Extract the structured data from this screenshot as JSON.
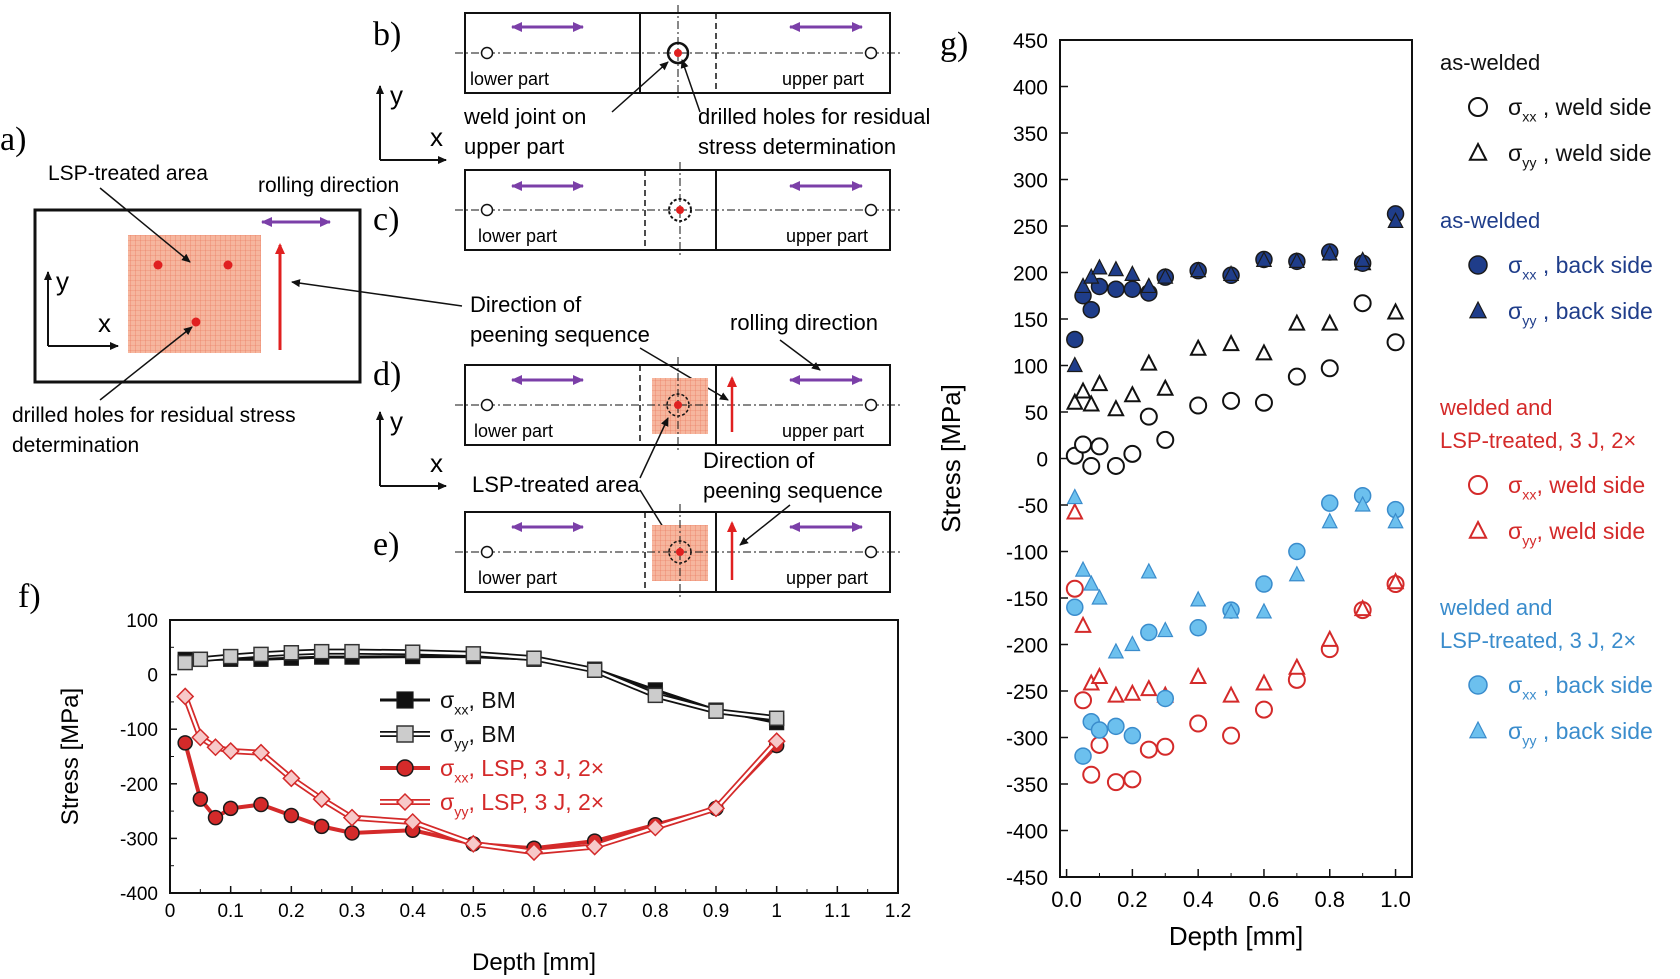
{
  "panels": {
    "a": {
      "letter": "a)",
      "lsp_area": "LSP-treated area",
      "rolling": "rolling direction",
      "holes": "drilled holes for residual stress",
      "holes2": "determination",
      "y": "y",
      "x": "x"
    },
    "b": {
      "letter": "b)",
      "lower": "lower part",
      "upper": "upper part",
      "weld1": "weld joint on",
      "weld2": "upper part",
      "holes1": "drilled holes for residual",
      "holes2": "stress determination",
      "y": "y",
      "x": "x"
    },
    "c": {
      "letter": "c)",
      "lower": "lower part",
      "upper": "upper part"
    },
    "mid": {
      "dir1": "Direction of",
      "dir2": "peening sequence",
      "rolling": "rolling direction"
    },
    "d": {
      "letter": "d)",
      "lower": "lower part",
      "upper": "upper part",
      "y": "y",
      "x": "x",
      "lsp": "LSP-treated area",
      "dir1": "Direction of",
      "dir2": "peening sequence"
    },
    "e": {
      "letter": "e)",
      "lower": "lower part",
      "upper": "upper part"
    },
    "f": {
      "letter": "f)"
    },
    "g": {
      "letter": "g)"
    }
  },
  "colors": {
    "black": "#111111",
    "gray": "#cccccc",
    "red": "#d42a2a",
    "blue": "#6cc0ee",
    "navy": "#1f3d8a",
    "purple": "#7b3fa8",
    "lsp": "#f2a58a",
    "arrow": "#e02020"
  },
  "chart_data": [
    {
      "id": "f",
      "type": "line",
      "title": "",
      "xlabel": "Depth [mm]",
      "ylabel": "Stress [MPa]",
      "xlim": [
        0,
        1.2
      ],
      "ylim": [
        -400,
        100
      ],
      "xticks": [
        "0",
        "0.1",
        "0.2",
        "0.3",
        "0.4",
        "0.5",
        "0.6",
        "0.7",
        "0.8",
        "0.9",
        "1",
        "1.1",
        "1.2"
      ],
      "yticks": [
        "100",
        "0",
        "-100",
        "-200",
        "-300",
        "-400"
      ],
      "series": [
        {
          "name": "σxx, BM",
          "marker": "square-filled",
          "color": "#111111",
          "x": [
            0.025,
            0.05,
            0.1,
            0.15,
            0.2,
            0.25,
            0.3,
            0.4,
            0.5,
            0.6,
            0.7,
            0.8,
            0.9,
            1.0
          ],
          "y": [
            28,
            28,
            28,
            28,
            30,
            32,
            32,
            33,
            33,
            28,
            10,
            -28,
            -65,
            -88
          ]
        },
        {
          "name": "σyy, BM",
          "marker": "square-open",
          "color": "#cccccc",
          "x": [
            0.025,
            0.05,
            0.1,
            0.15,
            0.2,
            0.25,
            0.3,
            0.4,
            0.5,
            0.6,
            0.7,
            0.8,
            0.9,
            1.0
          ],
          "y": [
            22,
            28,
            33,
            37,
            40,
            42,
            42,
            41,
            38,
            30,
            8,
            -38,
            -67,
            -80
          ]
        },
        {
          "name": "σxx, LSP, 3 J, 2×",
          "marker": "circle-filled",
          "color": "#d42a2a",
          "x": [
            0.025,
            0.05,
            0.075,
            0.1,
            0.15,
            0.2,
            0.25,
            0.3,
            0.4,
            0.5,
            0.6,
            0.7,
            0.8,
            0.9,
            1.0
          ],
          "y": [
            -125,
            -228,
            -262,
            -245,
            -238,
            -258,
            -278,
            -290,
            -285,
            -310,
            -318,
            -305,
            -275,
            -245,
            -130
          ]
        },
        {
          "name": "σyy, LSP, 3 J, 2×",
          "marker": "diamond-open",
          "color": "#d42a2a",
          "x": [
            0.025,
            0.05,
            0.075,
            0.1,
            0.15,
            0.2,
            0.25,
            0.3,
            0.4,
            0.5,
            0.6,
            0.7,
            0.8,
            0.9,
            1.0
          ],
          "y": [
            -40,
            -115,
            -133,
            -140,
            -143,
            -190,
            -228,
            -262,
            -270,
            -310,
            -325,
            -315,
            -280,
            -245,
            -122
          ]
        }
      ],
      "legend": [
        "σxx, BM",
        "σyy, BM",
        "σxx, LSP, 3 J, 2×",
        "σyy, LSP, 3 J, 2×"
      ],
      "legend_position": "center"
    },
    {
      "id": "g",
      "type": "scatter",
      "title": "",
      "xlabel": "Depth [mm]",
      "ylabel": "Stress [MPa]",
      "xlim": [
        -0.02,
        1.05
      ],
      "ylim": [
        -450,
        450
      ],
      "xticks": [
        "0.0",
        "0.2",
        "0.4",
        "0.6",
        "0.8",
        "1.0"
      ],
      "yticks": [
        "450",
        "400",
        "350",
        "300",
        "250",
        "200",
        "150",
        "100",
        "50",
        "0",
        "-50",
        "-100",
        "-150",
        "-200",
        "-250",
        "-300",
        "-350",
        "-400",
        "-450"
      ],
      "series": [
        {
          "name": "σxx , weld side",
          "group": "as-welded",
          "marker": "circle-open",
          "color": "#111111",
          "x": [
            0.025,
            0.05,
            0.075,
            0.1,
            0.15,
            0.2,
            0.25,
            0.3,
            0.4,
            0.5,
            0.6,
            0.7,
            0.8,
            0.9,
            1.0
          ],
          "y": [
            3,
            15,
            -8,
            13,
            -8,
            5,
            45,
            20,
            57,
            62,
            60,
            88,
            97,
            167,
            125
          ]
        },
        {
          "name": "σyy , weld side",
          "group": "as-welded",
          "marker": "triangle-open",
          "color": "#111111",
          "x": [
            0.025,
            0.05,
            0.075,
            0.1,
            0.15,
            0.2,
            0.25,
            0.3,
            0.4,
            0.5,
            0.6,
            0.7,
            0.8,
            0.9,
            1.0
          ],
          "y": [
            60,
            72,
            58,
            80,
            53,
            68,
            102,
            75,
            118,
            123,
            113,
            145,
            145,
            210,
            157
          ]
        },
        {
          "name": "σxx , back side",
          "group": "as-welded",
          "marker": "circle-filled",
          "color": "#1f3d8a",
          "x": [
            0.025,
            0.05,
            0.075,
            0.1,
            0.15,
            0.2,
            0.25,
            0.3,
            0.4,
            0.5,
            0.6,
            0.7,
            0.8,
            0.9,
            1.0
          ],
          "y": [
            128,
            175,
            160,
            185,
            182,
            182,
            178,
            195,
            202,
            197,
            214,
            212,
            222,
            210,
            263
          ]
        },
        {
          "name": "σyy , back side",
          "group": "as-welded",
          "marker": "triangle-filled",
          "color": "#1f3d8a",
          "x": [
            0.025,
            0.05,
            0.075,
            0.1,
            0.15,
            0.2,
            0.25,
            0.3,
            0.4,
            0.5,
            0.6,
            0.7,
            0.8,
            0.9,
            1.0
          ],
          "y": [
            100,
            185,
            195,
            205,
            203,
            198,
            185,
            195,
            202,
            198,
            213,
            212,
            220,
            213,
            255
          ]
        },
        {
          "name": "σxx, weld side",
          "group": "welded and LSP-treated, 3 J, 2×",
          "marker": "circle-open",
          "color": "#d42a2a",
          "x": [
            0.025,
            0.05,
            0.075,
            0.1,
            0.15,
            0.2,
            0.25,
            0.3,
            0.4,
            0.5,
            0.6,
            0.7,
            0.8,
            0.9,
            1.0
          ],
          "y": [
            -140,
            -260,
            -340,
            -308,
            -348,
            -345,
            -313,
            -310,
            -285,
            -298,
            -270,
            -238,
            -205,
            -163,
            -135
          ]
        },
        {
          "name": "σyy, weld side",
          "group": "welded and LSP-treated, 3 J, 2×",
          "marker": "triangle-open",
          "color": "#d42a2a",
          "x": [
            0.025,
            0.05,
            0.075,
            0.1,
            0.15,
            0.2,
            0.25,
            0.3,
            0.4,
            0.5,
            0.6,
            0.7,
            0.8,
            0.9,
            1.0
          ],
          "y": [
            -58,
            -180,
            -242,
            -235,
            -255,
            -253,
            -248,
            -255,
            -235,
            -255,
            -242,
            -225,
            -195,
            -162,
            -133
          ]
        },
        {
          "name": "σxx , back side",
          "group": "welded and LSP-treated, 3 J, 2×",
          "marker": "circle-filled",
          "color": "#6cc0ee",
          "x": [
            0.025,
            0.05,
            0.075,
            0.1,
            0.15,
            0.2,
            0.25,
            0.3,
            0.4,
            0.5,
            0.6,
            0.7,
            0.8,
            0.9,
            1.0
          ],
          "y": [
            -160,
            -320,
            -283,
            -292,
            -288,
            -298,
            -187,
            -258,
            -182,
            -163,
            -135,
            -100,
            -48,
            -40,
            -55
          ]
        },
        {
          "name": "σyy , back side",
          "group": "welded and LSP-treated, 3 J, 2×",
          "marker": "triangle-filled",
          "color": "#6cc0ee",
          "x": [
            0.025,
            0.05,
            0.075,
            0.1,
            0.15,
            0.2,
            0.25,
            0.3,
            0.4,
            0.5,
            0.6,
            0.7,
            0.8,
            0.9,
            1.0
          ],
          "y": [
            -42,
            -120,
            -135,
            -150,
            -208,
            -200,
            -122,
            -185,
            -152,
            -165,
            -165,
            -125,
            -68,
            -50,
            -68
          ]
        }
      ],
      "legend_groups": [
        {
          "title": "as-welded",
          "color": "#111111",
          "items": [
            {
              "label": "σxx , weld side",
              "marker": "circle-open",
              "color": "#111111"
            },
            {
              "label": "σyy , weld side",
              "marker": "triangle-open",
              "color": "#111111"
            }
          ]
        },
        {
          "title": "as-welded",
          "color": "#1f3d8a",
          "items": [
            {
              "label": "σxx , back side",
              "marker": "circle-filled",
              "color": "#1f3d8a"
            },
            {
              "label": "σyy , back side",
              "marker": "triangle-filled",
              "color": "#1f3d8a"
            }
          ]
        },
        {
          "title": "welded and",
          "title2": "LSP-treated, 3 J, 2×",
          "color": "#d42a2a",
          "items": [
            {
              "label": "σxx, weld side",
              "marker": "circle-open",
              "color": "#d42a2a"
            },
            {
              "label": "σyy, weld side",
              "marker": "triangle-open",
              "color": "#d42a2a"
            }
          ]
        },
        {
          "title": "welded and",
          "title2": "LSP-treated, 3 J, 2×",
          "color": "#3a8ccc",
          "items": [
            {
              "label": "σxx , back side",
              "marker": "circle-filled",
              "color": "#6cc0ee"
            },
            {
              "label": "σyy , back side",
              "marker": "triangle-filled",
              "color": "#6cc0ee"
            }
          ]
        }
      ],
      "legend_position": "right"
    }
  ]
}
